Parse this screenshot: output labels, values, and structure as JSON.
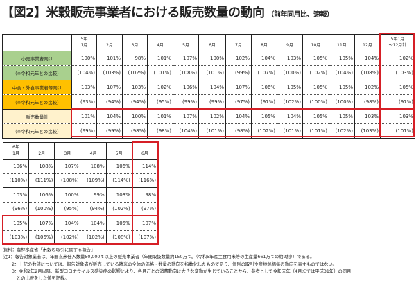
{
  "title": "【図2】米穀販売事業者における販売数量の動向",
  "subtitle": "（前年同月比、速報）",
  "colors": {
    "retail": "#a9d08e",
    "food": "#ffc000",
    "total": "#fff2cc",
    "highlight": "#d61f26"
  },
  "table1": {
    "headers": [
      "5年\n1月",
      "2月",
      "3月",
      "4月",
      "5月",
      "6月",
      "7月",
      "8月",
      "9月",
      "10月",
      "11月",
      "12月",
      "5年1月\n～12月計"
    ],
    "rows": [
      {
        "label": "小売事業者向け",
        "cls": "retail",
        "values": [
          "100%",
          "101%",
          "98%",
          "101%",
          "107%",
          "100%",
          "102%",
          "104%",
          "103%",
          "105%",
          "105%",
          "104%",
          "102%"
        ]
      },
      {
        "label": "（※令和元年との比較）",
        "cls": "retail",
        "values": [
          "(104%)",
          "(103%)",
          "(102%)",
          "(101%)",
          "(108%)",
          "(101%)",
          "(99%)",
          "(107%)",
          "(100%)",
          "(102%)",
          "(104%)",
          "(108%)",
          "(103%)"
        ]
      },
      {
        "label": "中食・外食事業者等向け",
        "cls": "food",
        "values": [
          "103%",
          "107%",
          "103%",
          "102%",
          "106%",
          "104%",
          "107%",
          "106%",
          "105%",
          "105%",
          "105%",
          "102%",
          "105%"
        ]
      },
      {
        "label": "（※令和元年との比較）",
        "cls": "food",
        "values": [
          "(93%)",
          "(94%)",
          "(94%)",
          "(95%)",
          "(99%)",
          "(99%)",
          "(97%)",
          "(97%)",
          "(102%)",
          "(100%)",
          "(100%)",
          "(98%)",
          "(97%)"
        ]
      },
      {
        "label": "販売数量計",
        "cls": "total",
        "values": [
          "101%",
          "104%",
          "100%",
          "101%",
          "107%",
          "102%",
          "104%",
          "105%",
          "104%",
          "105%",
          "105%",
          "103%",
          "103%"
        ]
      },
      {
        "label": "（※令和元年との比較）",
        "cls": "total",
        "values": [
          "(99%)",
          "(99%)",
          "(98%)",
          "(98%)",
          "(104%)",
          "(101%)",
          "(98%)",
          "(102%)",
          "(101%)",
          "(101%)",
          "(102%)",
          "(103%)",
          "(101%)"
        ]
      }
    ]
  },
  "table2": {
    "headers": [
      "6年\n1月",
      "2月",
      "3月",
      "4月",
      "5月",
      "6月"
    ],
    "rows": [
      [
        "106%",
        "108%",
        "107%",
        "108%",
        "106%",
        "114%"
      ],
      [
        "(110%)",
        "(111%)",
        "(108%)",
        "(109%)",
        "(114%)",
        "(116%)"
      ],
      [
        "103%",
        "106%",
        "100%",
        "99%",
        "103%",
        "98%"
      ],
      [
        "(96%)",
        "(100%)",
        "(95%)",
        "(94%)",
        "(102%)",
        "(97%)"
      ],
      [
        "105%",
        "107%",
        "104%",
        "104%",
        "105%",
        "107%"
      ],
      [
        "(103%)",
        "(106%)",
        "(102%)",
        "(102%)",
        "(108%)",
        "(107%)"
      ]
    ]
  },
  "notes": [
    "資料：農林水産省「米穀の取引に関する報告」",
    "注1：報告対象業者は、年間玄米仕入数量50,000ｔ以上の販売事業者（年間取扱数量約150万ｔ。（令和5年産主食用米等の生産量661万ｔの約2割））である。",
    "2：上記の数値については、報告対象者が販売している精米の全体の価格・数量の動向を指数化したものであり、個別の取引や産地銘柄毎の動向を表すものではない。",
    "3：令和2年2月以降、新型コロナウイルス感染症の影響により、各月ごとの消費動向に大きな変動が生じていることから、参考として令和元年（4月までは平成31年）の同月",
    "との比較をした値を記載。"
  ]
}
